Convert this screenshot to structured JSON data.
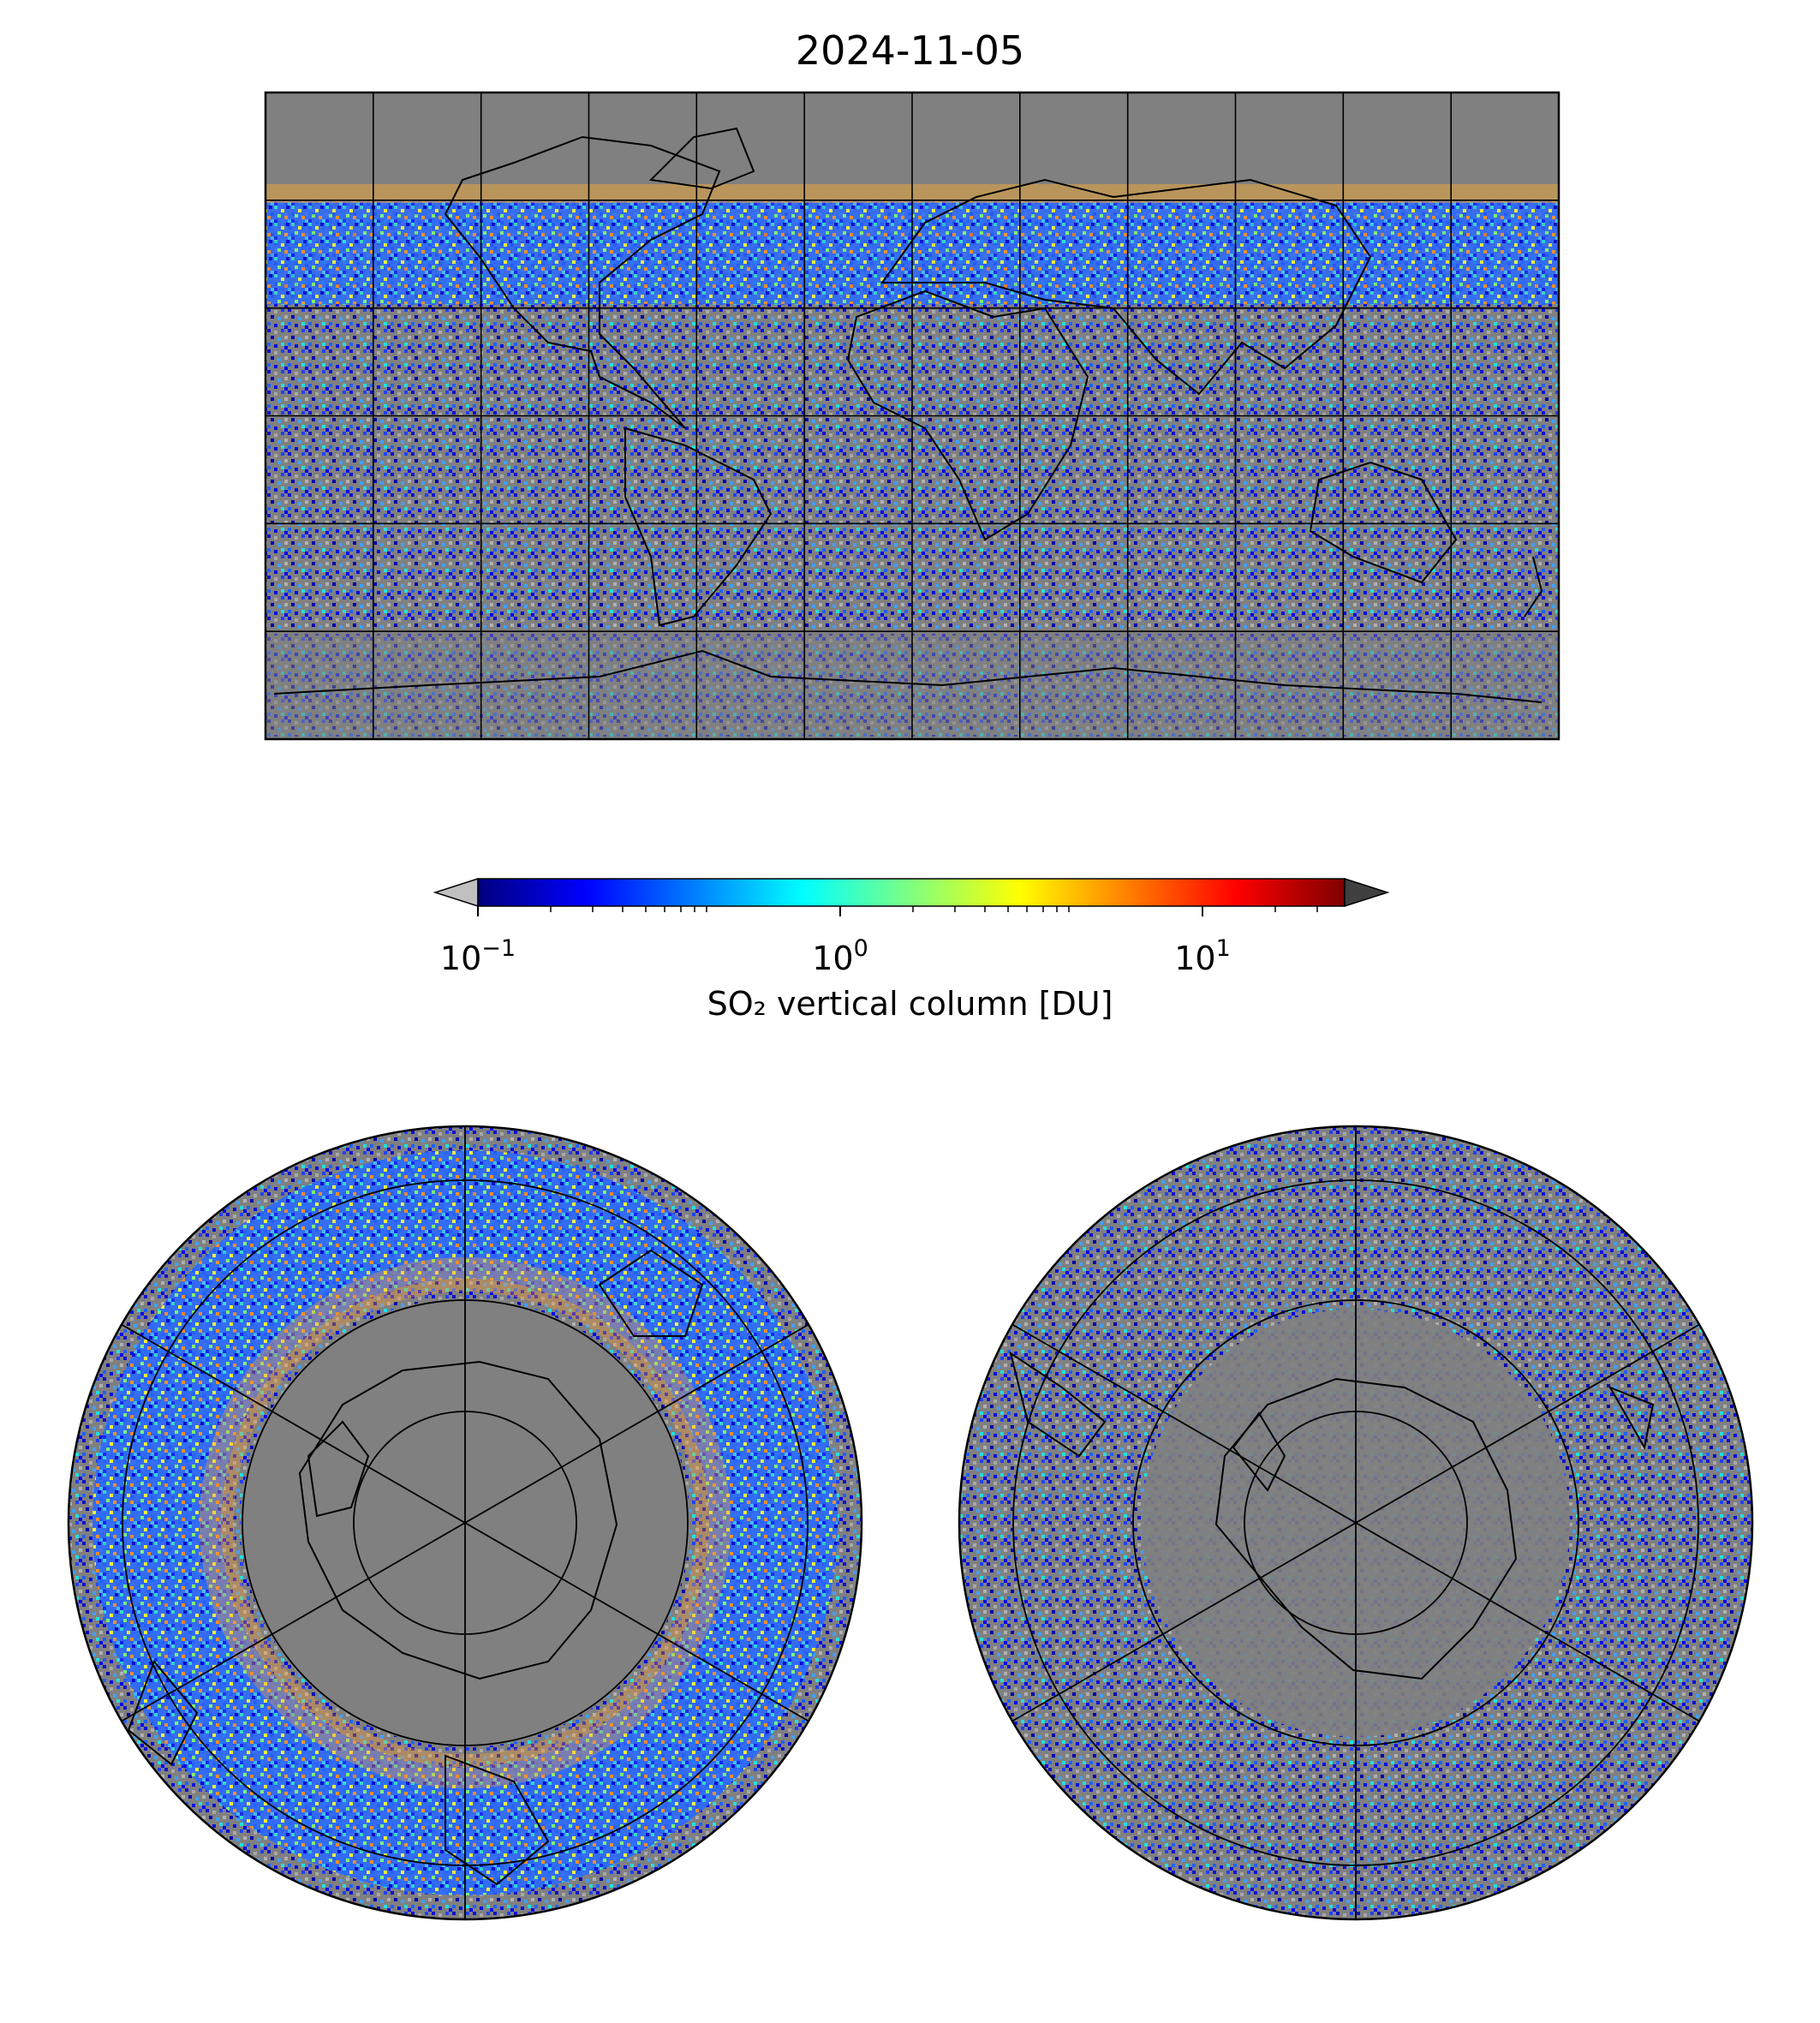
{
  "figure": {
    "title": "2024-11-05"
  },
  "colorbar": {
    "label": "SO₂ vertical column [DU]",
    "scale": "log",
    "range": [
      0.1,
      25
    ],
    "extend": "both",
    "under_color": "#c0c0c0",
    "over_color": "#404040",
    "tick_labels": [
      {
        "value": 0.1,
        "base": "10",
        "exp": "−1"
      },
      {
        "value": 1,
        "base": "10",
        "exp": "0"
      },
      {
        "value": 10,
        "base": "10",
        "exp": "1"
      }
    ],
    "colormap": [
      "#00007f",
      "#0000ff",
      "#007fff",
      "#00ffff",
      "#7fff7f",
      "#ffff00",
      "#ff7f00",
      "#ff0000",
      "#7f0000"
    ]
  },
  "maps": {
    "background_color": "#808080",
    "global": {
      "projection": "equirectangular",
      "lon_range": [
        -180,
        180
      ],
      "lat_range": [
        -90,
        90
      ],
      "gridline_lon_step": 30,
      "gridline_lat_step": 30
    },
    "north_polar": {
      "projection": "north-polar-stereographic"
    },
    "south_polar": {
      "projection": "south-polar-stereographic"
    }
  }
}
